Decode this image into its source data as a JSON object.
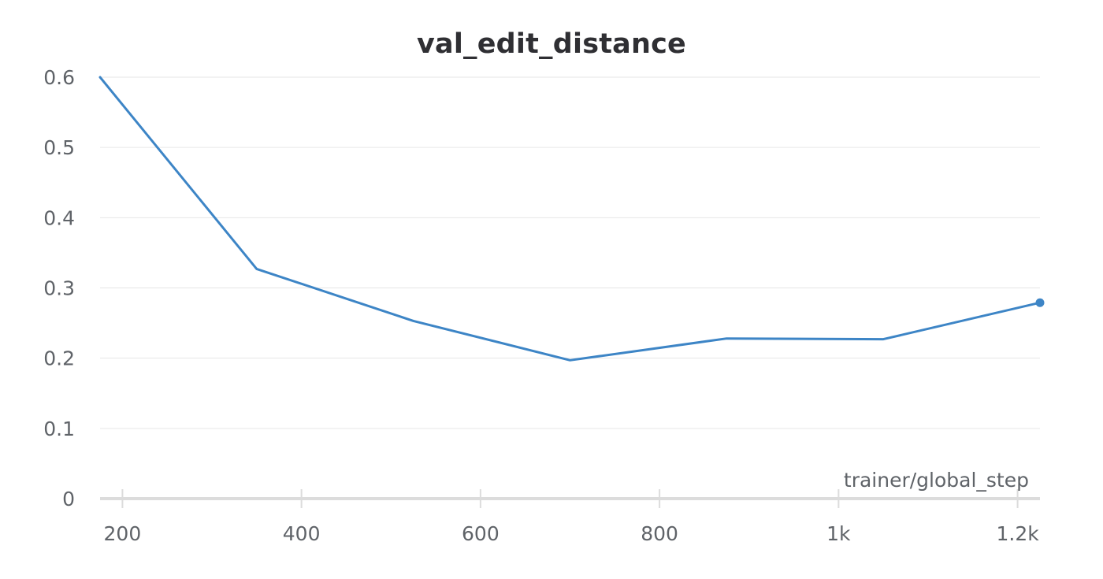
{
  "chart_data": {
    "type": "line",
    "title": "val_edit_distance",
    "xlabel": "trainer/global_step",
    "ylabel": "",
    "xlim": [
      175,
      1225
    ],
    "ylim": [
      0,
      0.6
    ],
    "x_ticks": [
      200,
      400,
      600,
      800,
      1000,
      1200
    ],
    "x_tick_labels": [
      "200",
      "400",
      "600",
      "800",
      "1k",
      "1.2k"
    ],
    "y_ticks": [
      0,
      0.1,
      0.2,
      0.3,
      0.4,
      0.5,
      0.6
    ],
    "y_tick_labels": [
      "0",
      "0.1",
      "0.2",
      "0.3",
      "0.4",
      "0.5",
      "0.6"
    ],
    "grid": true,
    "series": [
      {
        "color": "#3d85c6",
        "x": [
          175,
          350,
          525,
          700,
          875,
          1050,
          1225
        ],
        "y": [
          0.6,
          0.327,
          0.253,
          0.197,
          0.228,
          0.227,
          0.279
        ]
      }
    ]
  }
}
